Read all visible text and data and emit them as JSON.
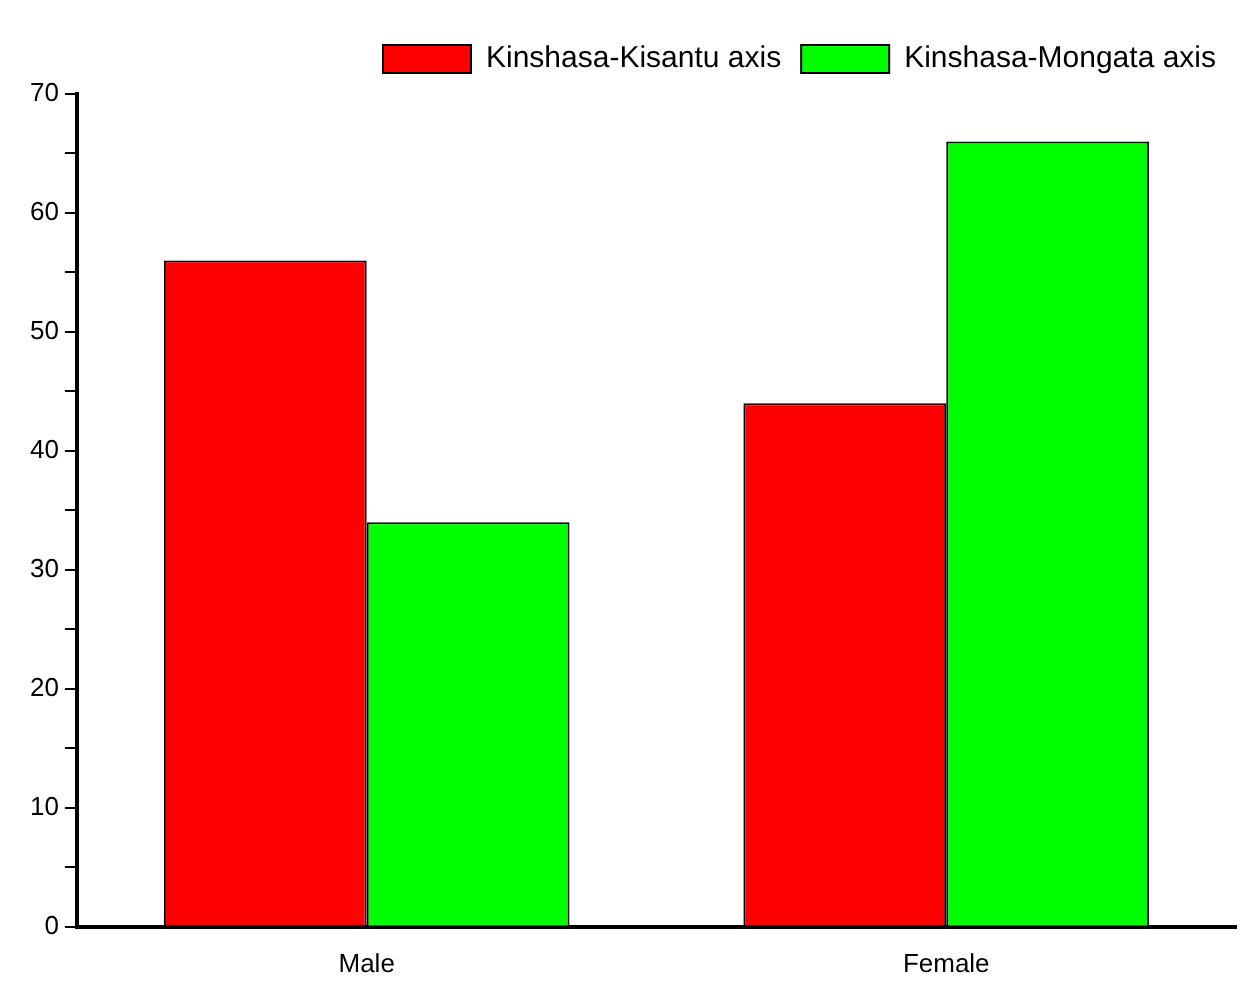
{
  "chart_data": {
    "type": "bar",
    "categories": [
      "Male",
      "Female"
    ],
    "series": [
      {
        "name": "Kinshasa-Kisantu axis",
        "color": "#ff0000",
        "values": [
          56,
          44
        ]
      },
      {
        "name": "Kinshasa-Mongata axis",
        "color": "#00ff00",
        "values": [
          34,
          66
        ]
      }
    ],
    "ylim": [
      0,
      70
    ],
    "yticks": [
      0,
      {
        "value": 5,
        "label": null
      },
      10,
      {
        "value": 15,
        "label": null
      },
      20,
      {
        "value": 25,
        "label": null
      },
      30,
      {
        "value": 35,
        "label": null
      },
      40,
      {
        "value": 45,
        "label": null
      },
      50,
      {
        "value": 55,
        "label": null
      },
      60,
      {
        "value": 65,
        "label": null
      },
      70
    ],
    "grid": false,
    "legend": "top right"
  }
}
